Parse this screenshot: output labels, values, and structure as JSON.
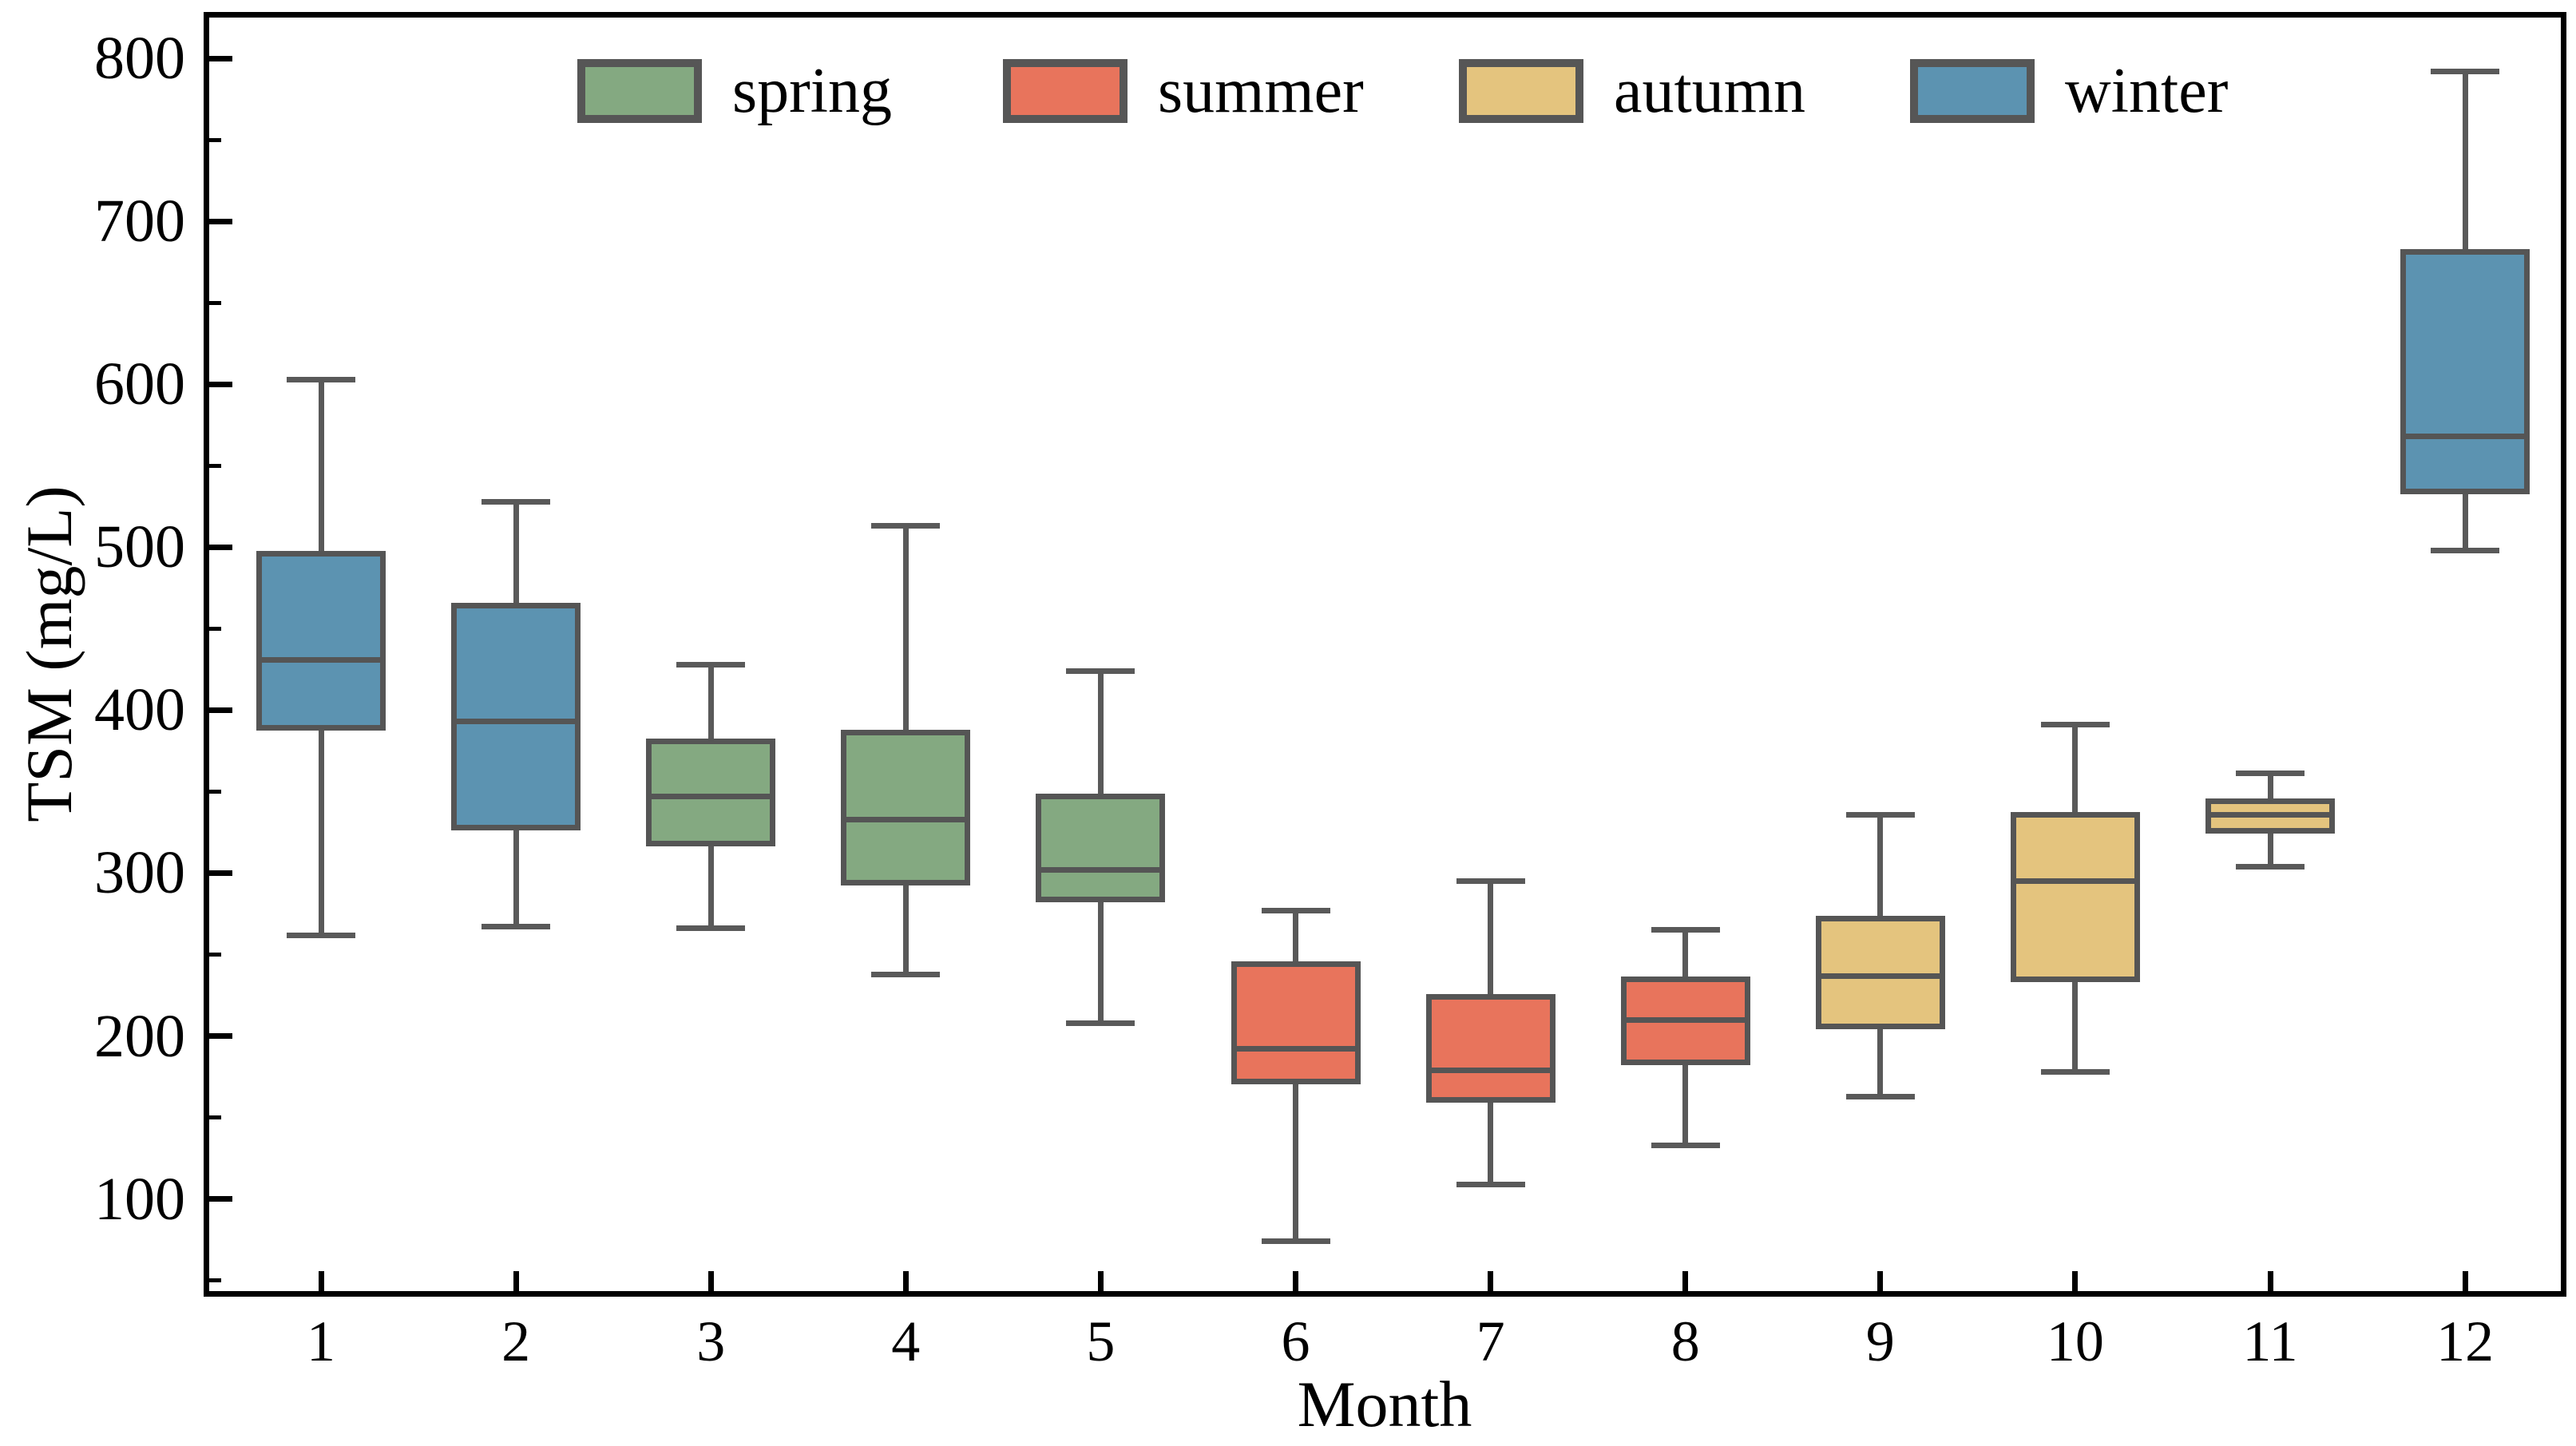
{
  "chart_data": {
    "type": "box",
    "title": "",
    "xlabel": "Month",
    "ylabel": "TSM (mg/L)",
    "categories": [
      "1",
      "2",
      "3",
      "4",
      "5",
      "6",
      "7",
      "8",
      "9",
      "10",
      "11",
      "12"
    ],
    "ylim": [
      42,
      827
    ],
    "yticks": [
      100,
      200,
      300,
      400,
      500,
      600,
      700,
      800
    ],
    "y_minor_step": 50,
    "grid": false,
    "tick_direction": "in",
    "legend_position": "top-inside",
    "legend": [
      {
        "label": "spring",
        "color": "#84a981"
      },
      {
        "label": "summer",
        "color": "#e8745c"
      },
      {
        "label": "autumn",
        "color": "#e4c47e"
      },
      {
        "label": "winter",
        "color": "#5c93b1"
      }
    ],
    "boxes": [
      {
        "month": "1",
        "season": "winter",
        "whislo": 262,
        "q1": 389,
        "med": 431,
        "q3": 496,
        "whishi": 603
      },
      {
        "month": "2",
        "season": "winter",
        "whislo": 267,
        "q1": 328,
        "med": 393,
        "q3": 464,
        "whishi": 528
      },
      {
        "month": "3",
        "season": "spring",
        "whislo": 266,
        "q1": 318,
        "med": 347,
        "q3": 381,
        "whishi": 428
      },
      {
        "month": "4",
        "season": "spring",
        "whislo": 238,
        "q1": 294,
        "med": 333,
        "q3": 386,
        "whishi": 513
      },
      {
        "month": "5",
        "season": "spring",
        "whislo": 208,
        "q1": 284,
        "med": 302,
        "q3": 347,
        "whishi": 424
      },
      {
        "month": "6",
        "season": "summer",
        "whislo": 74,
        "q1": 172,
        "med": 192,
        "q3": 244,
        "whishi": 277
      },
      {
        "month": "7",
        "season": "summer",
        "whislo": 109,
        "q1": 161,
        "med": 179,
        "q3": 224,
        "whishi": 295
      },
      {
        "month": "8",
        "season": "summer",
        "whislo": 133,
        "q1": 184,
        "med": 210,
        "q3": 235,
        "whishi": 265
      },
      {
        "month": "9",
        "season": "autumn",
        "whislo": 163,
        "q1": 206,
        "med": 237,
        "q3": 272,
        "whishi": 336
      },
      {
        "month": "10",
        "season": "autumn",
        "whislo": 178,
        "q1": 235,
        "med": 295,
        "q3": 336,
        "whishi": 391
      },
      {
        "month": "11",
        "season": "autumn",
        "whislo": 304,
        "q1": 326,
        "med": 336,
        "q3": 344,
        "whishi": 361
      },
      {
        "month": "12",
        "season": "winter",
        "whislo": 498,
        "q1": 534,
        "med": 568,
        "q3": 681,
        "whishi": 792
      }
    ],
    "styles": {
      "box_edge": "#555555",
      "whisker": "#595959",
      "axis_color": "#000000"
    }
  }
}
